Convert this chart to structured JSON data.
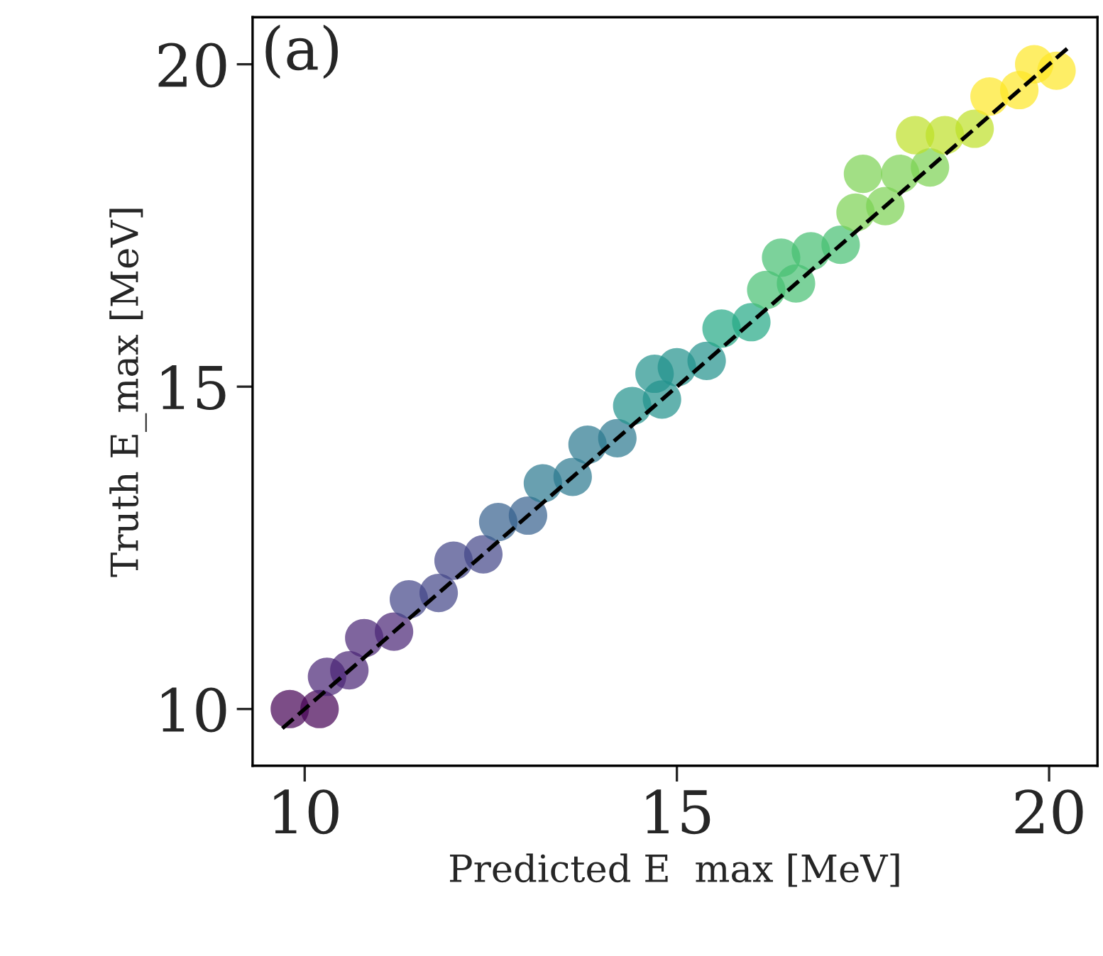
{
  "chart_data": {
    "type": "scatter",
    "xlabel": "Predicted E  max [MeV]",
    "ylabel": "Truth E_max [MeV]",
    "annotations": [
      "(a)"
    ],
    "xlim": [
      9.3,
      20.65
    ],
    "ylim": [
      9.12,
      20.73
    ],
    "xticks": [
      10,
      15,
      20
    ],
    "yticks": [
      10,
      15,
      20
    ],
    "grid": false,
    "legend": false,
    "marker": "circle",
    "series": [
      {
        "type": "scatter",
        "x": [
          9.8,
          10.2,
          10.3,
          10.6,
          10.8,
          11.2,
          11.4,
          11.8,
          12.0,
          12.4,
          12.6,
          13.0,
          13.2,
          13.6,
          13.8,
          14.2,
          14.4,
          14.8,
          15.0,
          15.4,
          15.6,
          16.0,
          16.2,
          16.6,
          16.8,
          17.2,
          17.4,
          17.8,
          18.0,
          18.4,
          18.6,
          19.0,
          19.2,
          19.6,
          19.8,
          20.1,
          17.5,
          18.2,
          14.7,
          16.4
        ],
        "values": [
          10.0,
          10.0,
          10.5,
          10.6,
          11.1,
          11.2,
          11.7,
          11.8,
          12.3,
          12.4,
          12.9,
          13.0,
          13.5,
          13.6,
          14.1,
          14.2,
          14.7,
          14.8,
          15.3,
          15.4,
          15.9,
          16.0,
          16.5,
          16.6,
          17.1,
          17.2,
          17.7,
          17.8,
          18.3,
          18.4,
          18.9,
          19.0,
          19.5,
          19.6,
          20.0,
          19.9,
          18.3,
          18.9,
          15.2,
          17.0
        ],
        "colors": [
          "#440154",
          "#440154",
          "#482475",
          "#482475",
          "#482475",
          "#482475",
          "#414487",
          "#414487",
          "#414487",
          "#414487",
          "#355f8d",
          "#355f8d",
          "#2a788e",
          "#2a788e",
          "#2a788e",
          "#2a788e",
          "#21918c",
          "#21918c",
          "#21918c",
          "#21918c",
          "#22a884",
          "#22a884",
          "#44bf70",
          "#44bf70",
          "#44bf70",
          "#44bf70",
          "#7ad151",
          "#7ad151",
          "#7ad151",
          "#7ad151",
          "#bddf26",
          "#bddf26",
          "#fde725",
          "#fde725",
          "#fde725",
          "#fde725",
          "#7ad151",
          "#bddf26",
          "#21918c",
          "#44bf70"
        ]
      },
      {
        "type": "line",
        "x": [
          9.7,
          20.3
        ],
        "values": [
          9.7,
          20.3
        ],
        "color": "#000000",
        "line_style": "dashed",
        "marker": "none"
      }
    ]
  }
}
